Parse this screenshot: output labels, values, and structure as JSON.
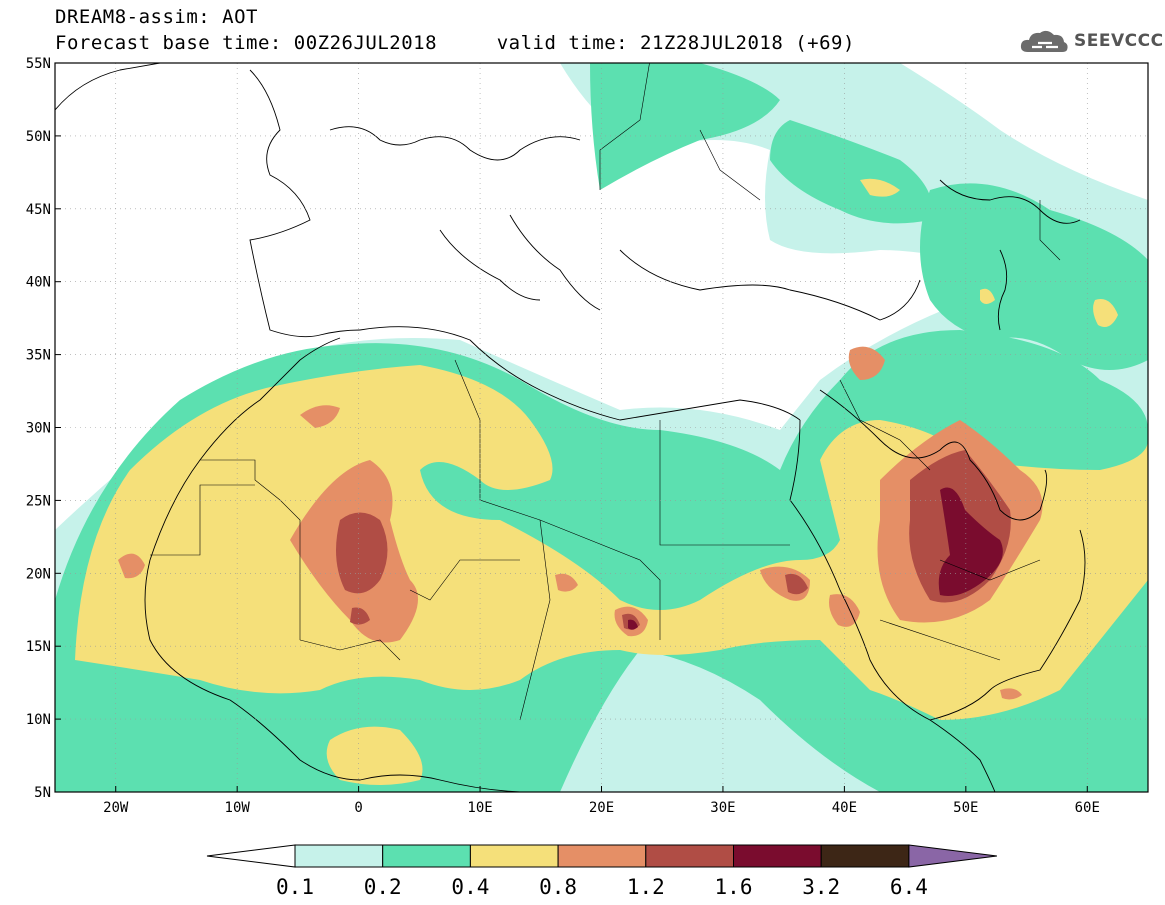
{
  "header": {
    "title_line1": "DREAM8-assim: AOT",
    "title_line2": "Forecast base time: 00Z26JUL2018     valid time: 21Z28JUL2018 (+69)",
    "logo_text": "SEEVCCC",
    "logo_icon": "cloud-icon"
  },
  "axes": {
    "lon_min": -25,
    "lon_max": 65,
    "lat_min": 5,
    "lat_max": 55,
    "lat_ticks": [
      {
        "value": 55,
        "label": "55N"
      },
      {
        "value": 50,
        "label": "50N"
      },
      {
        "value": 45,
        "label": "45N"
      },
      {
        "value": 40,
        "label": "40N"
      },
      {
        "value": 35,
        "label": "35N"
      },
      {
        "value": 30,
        "label": "30N"
      },
      {
        "value": 25,
        "label": "25N"
      },
      {
        "value": 20,
        "label": "20N"
      },
      {
        "value": 15,
        "label": "15N"
      },
      {
        "value": 10,
        "label": "10N"
      },
      {
        "value": 5,
        "label": "5N"
      }
    ],
    "lon_ticks": [
      {
        "value": -20,
        "label": "20W"
      },
      {
        "value": -10,
        "label": "10W"
      },
      {
        "value": 0,
        "label": "0"
      },
      {
        "value": 10,
        "label": "10E"
      },
      {
        "value": 20,
        "label": "20E"
      },
      {
        "value": 30,
        "label": "30E"
      },
      {
        "value": 40,
        "label": "40E"
      },
      {
        "value": 50,
        "label": "50E"
      },
      {
        "value": 60,
        "label": "60E"
      }
    ],
    "grid": true
  },
  "colorbar": {
    "labels": [
      "0.1",
      "0.2",
      "0.4",
      "0.8",
      "1.2",
      "1.6",
      "3.2",
      "6.4"
    ],
    "colors": [
      "#ffffff",
      "#c6f2ea",
      "#5ce0b0",
      "#f5e07a",
      "#e58f66",
      "#b04d45",
      "#7a0c2e",
      "#3d2616",
      "#8a66a6"
    ]
  },
  "field_colors": {
    "c01": "#c6f2ea",
    "c02": "#5ce0b0",
    "c04": "#f5e07a",
    "c08": "#e58f66",
    "c12": "#b04d45",
    "c16": "#7a0c2e"
  }
}
